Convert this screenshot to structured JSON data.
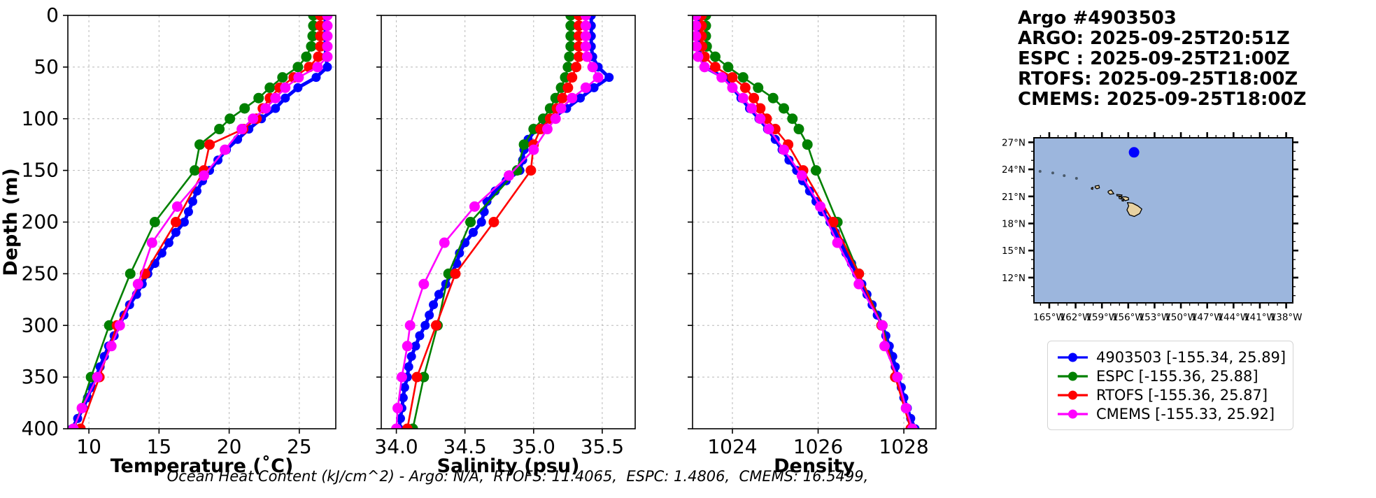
{
  "header": {
    "title": "Argo #4903503",
    "lines": [
      "ARGO: 2025-09-25T20:51Z",
      "ESPC : 2025-09-25T21:00Z",
      "RTOFS: 2025-09-25T18:00Z",
      "CMEMS: 2025-09-25T18:00Z"
    ]
  },
  "footer": {
    "ohc_note": "Ocean Heat Content (kJ/cm^2) - Argo: N/A,  RTOFS: 11.4065,  ESPC: 1.4806,  CMEMS: 16.5499,"
  },
  "legend": {
    "items": [
      {
        "label": "4903503 [-155.34, 25.89]",
        "color": "#0000ff"
      },
      {
        "label": "ESPC [-155.36, 25.88]",
        "color": "#008000"
      },
      {
        "label": "RTOFS [-155.36, 25.87]",
        "color": "#ff0000"
      },
      {
        "label": "CMEMS [-155.33, 25.92]",
        "color": "#ff00ff"
      }
    ]
  },
  "map": {
    "extent": {
      "lon_min": -166.75,
      "lon_max": -137.25,
      "lat_min": 9.2,
      "lat_max": 27.5
    },
    "ocean_color": "#9cb6dd",
    "land_color": "#e8d2a2",
    "lat_major_ticks": [
      27,
      24,
      21,
      18,
      15,
      12
    ],
    "lat_tick_labels": [
      "27°N",
      "24°N",
      "21°N",
      "18°N",
      "15°N",
      "12°N"
    ],
    "lon_major_ticks": [
      -165,
      -162,
      -159,
      -156,
      -153,
      -150,
      -147,
      -144,
      -141,
      -138
    ],
    "lon_tick_labels": [
      "165°W",
      "162°W",
      "159°W",
      "156°W",
      "153°W",
      "150°W",
      "147°W",
      "144°W",
      "141°W",
      "138°W"
    ],
    "marker": {
      "lon": -155.34,
      "lat": 25.89,
      "color": "#0000ff"
    },
    "islands": [
      [
        [
          -160.2,
          21.95
        ],
        [
          -160.02,
          22.0
        ],
        [
          -160.05,
          21.78
        ],
        [
          -160.2,
          21.82
        ]
      ],
      [
        [
          -159.75,
          22.15
        ],
        [
          -159.35,
          22.22
        ],
        [
          -159.28,
          21.95
        ],
        [
          -159.58,
          21.85
        ],
        [
          -159.78,
          22.0
        ]
      ],
      [
        [
          -158.28,
          21.58
        ],
        [
          -157.95,
          21.72
        ],
        [
          -157.64,
          21.3
        ],
        [
          -158.1,
          21.24
        ],
        [
          -158.3,
          21.45
        ]
      ],
      [
        [
          -157.32,
          21.22
        ],
        [
          -156.7,
          21.16
        ],
        [
          -156.78,
          21.02
        ],
        [
          -157.28,
          21.07
        ]
      ],
      [
        [
          -157.06,
          20.95
        ],
        [
          -156.84,
          21.0
        ],
        [
          -156.78,
          20.72
        ],
        [
          -157.02,
          20.76
        ]
      ],
      [
        [
          -156.72,
          20.62
        ],
        [
          -156.53,
          20.64
        ],
        [
          -156.54,
          20.48
        ],
        [
          -156.7,
          20.5
        ]
      ],
      [
        [
          -156.7,
          20.95
        ],
        [
          -156.3,
          20.96
        ],
        [
          -155.98,
          20.85
        ],
        [
          -155.95,
          20.64
        ],
        [
          -156.35,
          20.52
        ],
        [
          -156.55,
          20.75
        ],
        [
          -156.68,
          20.78
        ]
      ],
      [
        [
          -156.1,
          20.32
        ],
        [
          -155.5,
          20.25
        ],
        [
          -154.9,
          19.95
        ],
        [
          -154.45,
          19.6
        ],
        [
          -154.7,
          19.1
        ],
        [
          -155.3,
          18.78
        ],
        [
          -155.85,
          18.95
        ],
        [
          -156.15,
          19.5
        ],
        [
          -155.95,
          19.95
        ]
      ]
    ],
    "specks": [
      [
        -166.05,
        23.78
      ],
      [
        -164.6,
        23.6
      ],
      [
        -163.3,
        23.3
      ],
      [
        -161.9,
        23.0
      ]
    ]
  },
  "chart_data": [
    {
      "type": "line",
      "xlabel": "Temperature (˚C)",
      "ylabel": "Depth (m)",
      "xlim": [
        8.5,
        27.6
      ],
      "xticks": [
        10,
        15,
        20,
        25
      ],
      "xtick_labels": [
        "10",
        "15",
        "20",
        "25"
      ],
      "ylim": [
        0,
        400
      ],
      "yticks": [
        0,
        50,
        100,
        150,
        200,
        250,
        300,
        350,
        400
      ],
      "ytick_labels": [
        "0",
        "50",
        "100",
        "150",
        "200",
        "250",
        "300",
        "350",
        "400"
      ],
      "grid": true,
      "series": [
        {
          "name": "4903503",
          "color": "#0000ff",
          "lw": 5,
          "ms": 6.5,
          "depths": [
            0,
            10,
            20,
            30,
            40,
            50,
            60,
            70,
            80,
            90,
            100,
            110,
            120,
            130,
            140,
            150,
            160,
            170,
            180,
            190,
            200,
            210,
            220,
            230,
            240,
            250,
            260,
            270,
            280,
            290,
            300,
            310,
            320,
            330,
            340,
            350,
            360,
            370,
            380,
            390,
            400
          ],
          "values": [
            26.85,
            26.85,
            26.85,
            26.85,
            26.9,
            27.0,
            26.2,
            24.9,
            24.0,
            23.3,
            22.3,
            21.4,
            20.6,
            19.8,
            19.2,
            18.6,
            18.1,
            17.7,
            17.4,
            17.1,
            16.8,
            16.2,
            15.7,
            15.2,
            14.7,
            14.2,
            13.8,
            13.4,
            12.9,
            12.5,
            12.2,
            11.8,
            11.4,
            11.1,
            10.8,
            10.5,
            10.2,
            9.9,
            9.6,
            9.2,
            8.8
          ]
        },
        {
          "name": "ESPC",
          "color": "#008000",
          "lw": 2.6,
          "ms": 7.5,
          "depths": [
            0,
            10,
            20,
            30,
            40,
            50,
            60,
            70,
            80,
            90,
            100,
            110,
            125,
            150,
            200,
            250,
            300,
            350,
            400
          ],
          "values": [
            26.0,
            26.0,
            25.95,
            25.85,
            25.5,
            24.9,
            23.8,
            22.9,
            22.1,
            21.1,
            20.05,
            19.3,
            17.9,
            17.55,
            14.7,
            12.95,
            11.45,
            10.15,
            8.95
          ]
        },
        {
          "name": "RTOFS",
          "color": "#ff0000",
          "lw": 2.6,
          "ms": 7.5,
          "depths": [
            0,
            10,
            20,
            30,
            40,
            50,
            60,
            70,
            80,
            90,
            100,
            110,
            125,
            150,
            200,
            250,
            300,
            350,
            400
          ],
          "values": [
            26.5,
            26.5,
            26.5,
            26.5,
            26.35,
            25.7,
            24.6,
            23.6,
            22.9,
            22.4,
            21.95,
            21.0,
            18.6,
            18.2,
            16.2,
            14.0,
            12.0,
            10.75,
            9.4
          ]
        },
        {
          "name": "CMEMS",
          "color": "#ff00ff",
          "lw": 2.6,
          "ms": 7.5,
          "depths": [
            0,
            10,
            20,
            30,
            40,
            50,
            60,
            70,
            80,
            90,
            100,
            110,
            130,
            155,
            185,
            220,
            260,
            300,
            320,
            350,
            380,
            400
          ],
          "values": [
            27.0,
            27.0,
            27.0,
            27.0,
            27.0,
            26.3,
            24.95,
            24.0,
            23.3,
            22.6,
            21.7,
            20.9,
            19.7,
            18.2,
            16.3,
            14.5,
            13.5,
            12.2,
            11.6,
            10.6,
            9.5,
            8.9
          ]
        }
      ]
    },
    {
      "type": "line",
      "xlabel": "Salinity (psu)",
      "ylabel": "",
      "xlim": [
        33.89,
        35.74
      ],
      "xticks": [
        34.0,
        34.5,
        35.0,
        35.5
      ],
      "xtick_labels": [
        "34.0",
        "34.5",
        "35.0",
        "35.5"
      ],
      "ylim": [
        0,
        400
      ],
      "yticks": [
        0,
        50,
        100,
        150,
        200,
        250,
        300,
        350,
        400
      ],
      "ytick_labels": [],
      "grid": true,
      "series": [
        {
          "name": "4903503",
          "color": "#0000ff",
          "lw": 5,
          "ms": 6.5,
          "depths": [
            0,
            10,
            20,
            30,
            40,
            50,
            60,
            70,
            80,
            90,
            100,
            110,
            120,
            130,
            140,
            150,
            160,
            170,
            180,
            190,
            200,
            210,
            220,
            230,
            240,
            250,
            260,
            270,
            280,
            290,
            300,
            310,
            320,
            330,
            340,
            350,
            360,
            370,
            380,
            390,
            400
          ],
          "values": [
            35.42,
            35.42,
            35.42,
            35.42,
            35.43,
            35.47,
            35.55,
            35.44,
            35.34,
            35.24,
            35.13,
            35.02,
            34.96,
            34.93,
            34.92,
            34.9,
            34.8,
            34.72,
            34.66,
            34.64,
            34.62,
            34.56,
            34.5,
            34.46,
            34.44,
            34.4,
            34.36,
            34.31,
            34.27,
            34.24,
            34.21,
            34.17,
            34.14,
            34.11,
            34.09,
            34.08,
            34.06,
            34.05,
            34.04,
            34.03,
            34.02
          ]
        },
        {
          "name": "ESPC",
          "color": "#008000",
          "lw": 2.6,
          "ms": 7.5,
          "depths": [
            0,
            10,
            20,
            30,
            40,
            50,
            60,
            70,
            80,
            90,
            100,
            110,
            125,
            150,
            200,
            250,
            300,
            350,
            400
          ],
          "values": [
            35.27,
            35.27,
            35.27,
            35.27,
            35.26,
            35.25,
            35.23,
            35.2,
            35.16,
            35.12,
            35.07,
            35.0,
            34.93,
            34.88,
            34.54,
            34.38,
            34.3,
            34.2,
            34.12
          ]
        },
        {
          "name": "RTOFS",
          "color": "#ff0000",
          "lw": 2.6,
          "ms": 7.5,
          "depths": [
            0,
            10,
            20,
            30,
            40,
            50,
            60,
            70,
            80,
            90,
            100,
            110,
            125,
            150,
            200,
            250,
            300,
            350,
            400
          ],
          "values": [
            35.33,
            35.33,
            35.33,
            35.33,
            35.33,
            35.31,
            35.28,
            35.25,
            35.21,
            35.17,
            35.12,
            35.05,
            35.0,
            34.98,
            34.71,
            34.43,
            34.29,
            34.15,
            34.08
          ]
        },
        {
          "name": "CMEMS",
          "color": "#ff00ff",
          "lw": 2.6,
          "ms": 7.5,
          "depths": [
            0,
            10,
            20,
            30,
            40,
            50,
            60,
            70,
            80,
            90,
            100,
            110,
            130,
            155,
            185,
            220,
            260,
            300,
            320,
            350,
            380,
            400
          ],
          "values": [
            35.38,
            35.38,
            35.38,
            35.38,
            35.39,
            35.43,
            35.47,
            35.38,
            35.28,
            35.2,
            35.16,
            35.1,
            35.0,
            34.82,
            34.57,
            34.35,
            34.2,
            34.1,
            34.08,
            34.04,
            34.01,
            34.0
          ]
        }
      ]
    },
    {
      "type": "line",
      "xlabel": "Density",
      "ylabel": "",
      "xlim": [
        1023.07,
        1028.75
      ],
      "xticks": [
        1024,
        1026,
        1028
      ],
      "xtick_labels": [
        "1024",
        "1026",
        "1028"
      ],
      "ylim": [
        0,
        400
      ],
      "yticks": [
        0,
        50,
        100,
        150,
        200,
        250,
        300,
        350,
        400
      ],
      "ytick_labels": [],
      "grid": true,
      "series": [
        {
          "name": "4903503",
          "color": "#0000ff",
          "lw": 5,
          "ms": 6.5,
          "depths": [
            0,
            10,
            20,
            30,
            40,
            50,
            60,
            70,
            80,
            90,
            100,
            110,
            120,
            130,
            140,
            150,
            160,
            170,
            180,
            190,
            200,
            210,
            220,
            230,
            240,
            250,
            260,
            270,
            280,
            290,
            300,
            310,
            320,
            330,
            340,
            350,
            360,
            370,
            380,
            390,
            400
          ],
          "values": [
            1023.22,
            1023.22,
            1023.22,
            1023.23,
            1023.25,
            1023.35,
            1023.8,
            1024.0,
            1024.2,
            1024.4,
            1024.62,
            1024.82,
            1025.0,
            1025.16,
            1025.32,
            1025.5,
            1025.64,
            1025.8,
            1025.95,
            1026.1,
            1026.28,
            1026.4,
            1026.52,
            1026.65,
            1026.78,
            1026.9,
            1027.02,
            1027.14,
            1027.26,
            1027.38,
            1027.5,
            1027.58,
            1027.66,
            1027.74,
            1027.8,
            1027.86,
            1027.94,
            1028.0,
            1028.08,
            1028.16,
            1028.26
          ]
        },
        {
          "name": "ESPC",
          "color": "#008000",
          "lw": 2.6,
          "ms": 7.5,
          "depths": [
            0,
            10,
            20,
            30,
            40,
            50,
            60,
            70,
            80,
            90,
            100,
            110,
            125,
            150,
            200,
            250,
            300,
            350,
            400
          ],
          "values": [
            1023.38,
            1023.38,
            1023.38,
            1023.4,
            1023.6,
            1023.9,
            1024.25,
            1024.6,
            1024.95,
            1025.2,
            1025.4,
            1025.55,
            1025.75,
            1025.95,
            1026.45,
            1026.95,
            1027.5,
            1027.8,
            1028.2
          ]
        },
        {
          "name": "RTOFS",
          "color": "#ff0000",
          "lw": 2.6,
          "ms": 7.5,
          "depths": [
            0,
            10,
            20,
            30,
            40,
            50,
            60,
            70,
            80,
            90,
            100,
            110,
            125,
            150,
            200,
            250,
            300,
            350,
            400
          ],
          "values": [
            1023.28,
            1023.28,
            1023.28,
            1023.29,
            1023.35,
            1023.6,
            1024.0,
            1024.3,
            1024.5,
            1024.65,
            1024.8,
            1025.0,
            1025.3,
            1025.65,
            1026.35,
            1026.95,
            1027.48,
            1027.8,
            1028.16
          ]
        },
        {
          "name": "CMEMS",
          "color": "#ff00ff",
          "lw": 2.6,
          "ms": 7.5,
          "depths": [
            0,
            10,
            20,
            30,
            40,
            50,
            60,
            70,
            80,
            90,
            100,
            110,
            130,
            155,
            185,
            220,
            260,
            300,
            320,
            350,
            380,
            400
          ],
          "values": [
            1023.15,
            1023.15,
            1023.15,
            1023.16,
            1023.2,
            1023.35,
            1023.75,
            1024.0,
            1024.25,
            1024.45,
            1024.65,
            1024.85,
            1025.2,
            1025.62,
            1026.05,
            1026.45,
            1026.95,
            1027.5,
            1027.55,
            1027.85,
            1028.05,
            1028.2
          ]
        }
      ]
    }
  ]
}
